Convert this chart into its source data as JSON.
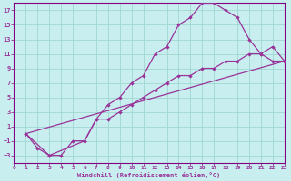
{
  "background_color": "#c8eef0",
  "grid_color": "#a0d8d0",
  "line_color": "#993399",
  "spine_color": "#800080",
  "xlabel": "Windchill (Refroidissement éolien,°C)",
  "xlim": [
    0,
    23
  ],
  "ylim": [
    -4,
    18
  ],
  "xticks": [
    0,
    1,
    2,
    3,
    4,
    5,
    6,
    7,
    8,
    9,
    10,
    11,
    12,
    13,
    14,
    15,
    16,
    17,
    18,
    19,
    20,
    21,
    22,
    23
  ],
  "yticks": [
    -3,
    -1,
    1,
    3,
    5,
    7,
    9,
    11,
    13,
    15,
    17
  ],
  "curve1_x": [
    1,
    2,
    3,
    4,
    5,
    6,
    7,
    8,
    9,
    10,
    11,
    12,
    13,
    14,
    15,
    16,
    17,
    18,
    19,
    20,
    21,
    22,
    23
  ],
  "curve1_y": [
    0,
    -2,
    -3,
    -3,
    -1,
    -1,
    2,
    4,
    5,
    7,
    8,
    11,
    12,
    15,
    16,
    18,
    18,
    17,
    16,
    13,
    11,
    10,
    10
  ],
  "curve2_x": [
    1,
    3,
    6,
    7,
    8,
    9,
    10,
    11,
    12,
    13,
    14,
    15,
    16,
    17,
    18,
    19,
    20,
    21,
    22,
    23
  ],
  "curve2_y": [
    0,
    -3,
    -1,
    2,
    2,
    3,
    4,
    5,
    6,
    7,
    8,
    8,
    9,
    9,
    10,
    10,
    11,
    11,
    12,
    10
  ],
  "curve3_x": [
    1,
    23
  ],
  "curve3_y": [
    0,
    10
  ]
}
